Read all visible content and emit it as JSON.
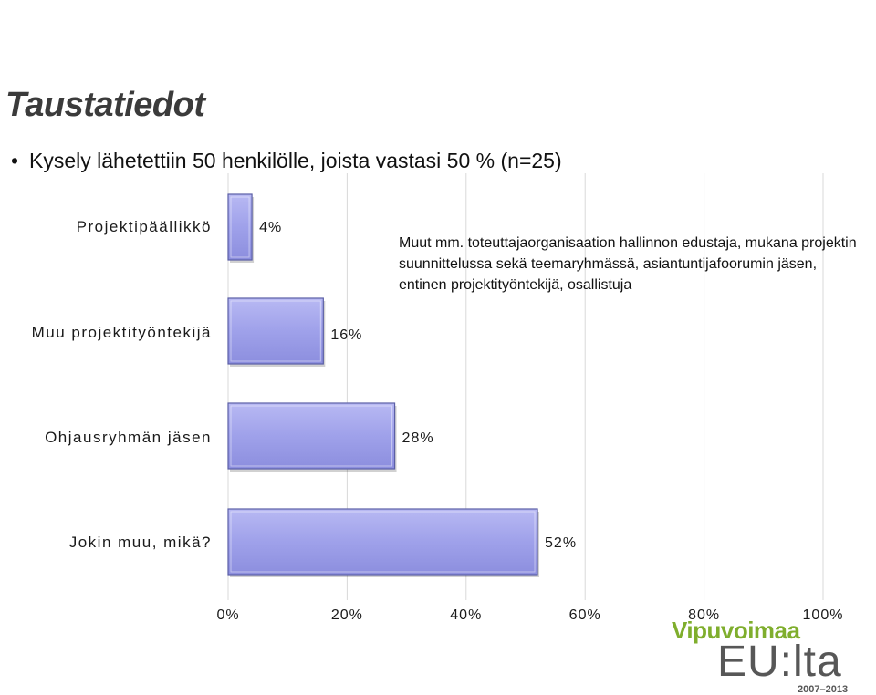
{
  "slide": {
    "title": "Taustatiedot",
    "bullet": "Kysely lähetettiin 50 henkilölle, joista vastasi 50 % (n=25)",
    "note": "Muut mm. toteuttajaorganisaation hallinnon edustaja, mukana projektin suunnittelussa sekä teemaryhmässä, asiantuntijafoorumin jäsen, entinen projektityöntekijä, osallistuja"
  },
  "logo": {
    "top": "Vipuvoimaa",
    "main": "EU:lta",
    "years": "2007–2013",
    "accent_color": "#7fae2d",
    "text_color": "#575757"
  },
  "chart_data": {
    "type": "bar",
    "orientation": "horizontal",
    "title": "",
    "xlabel": "",
    "ylabel": "",
    "categories": [
      "Projektipäällikkö",
      "Muu projektityöntekijä",
      "Ohjausryhmän jäsen",
      "Jokin muu, mikä?"
    ],
    "values": [
      4,
      16,
      28,
      52
    ],
    "value_labels": [
      "4%",
      "16%",
      "28%",
      "52%"
    ],
    "xlim": [
      0,
      100
    ],
    "xticks": [
      0,
      20,
      40,
      60,
      80,
      100
    ],
    "xtick_labels": [
      "0%",
      "20%",
      "40%",
      "60%",
      "80%",
      "100%"
    ],
    "grid": "vertical",
    "legend": "none",
    "bar_color": "#9d9fe8",
    "bar_edge_color": "#5b5fa6"
  }
}
